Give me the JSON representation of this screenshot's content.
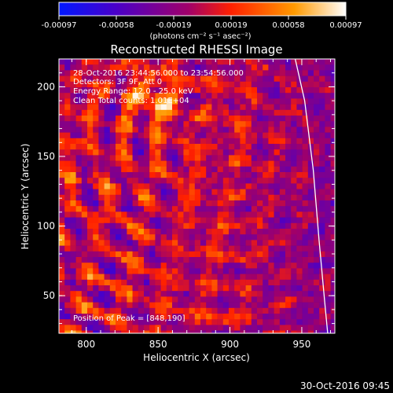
{
  "chart_data": {
    "type": "heatmap",
    "title": "Reconstructed RHESSI Image",
    "xlabel": "Heliocentric X (arcsec)",
    "ylabel": "Heliocentric Y (arcsec)",
    "x_ticks": [
      800,
      850,
      900,
      950
    ],
    "y_ticks": [
      50,
      100,
      150,
      200
    ],
    "xlim": [
      781,
      973
    ],
    "ylim": [
      23,
      220
    ],
    "colorbar": {
      "ticks": [
        "-0.00097",
        "-0.00058",
        "-0.00019",
        "0.00019",
        "0.00058",
        "0.00097"
      ],
      "range": [
        -0.00097,
        0.00097
      ],
      "unit_label": "(photons cm⁻² s⁻¹ asec⁻²)",
      "colors": [
        "#0018ff",
        "#4a00c8",
        "#a0006a",
        "#ff2000",
        "#ff9a00",
        "#ffffff"
      ]
    },
    "annotations": [
      "28-Oct-2016 23:44:56.000 to 23:54:56.000",
      "Detectors: 3F 9F, Att 0",
      "Energy Range: 12.0 - 25.0 keV",
      "Clean    Total counts: 1.01E+04"
    ],
    "peak_label": "Position of Peak = [848,190]",
    "peak": {
      "x": 848,
      "y": 190
    },
    "limb": [
      [
        945,
        222
      ],
      [
        952,
        190
      ],
      [
        958,
        140
      ],
      [
        962,
        90
      ],
      [
        966,
        45
      ],
      [
        968,
        23
      ]
    ],
    "grid": false
  },
  "footer": {
    "timestamp": "30-Oct-2016 09:45"
  }
}
